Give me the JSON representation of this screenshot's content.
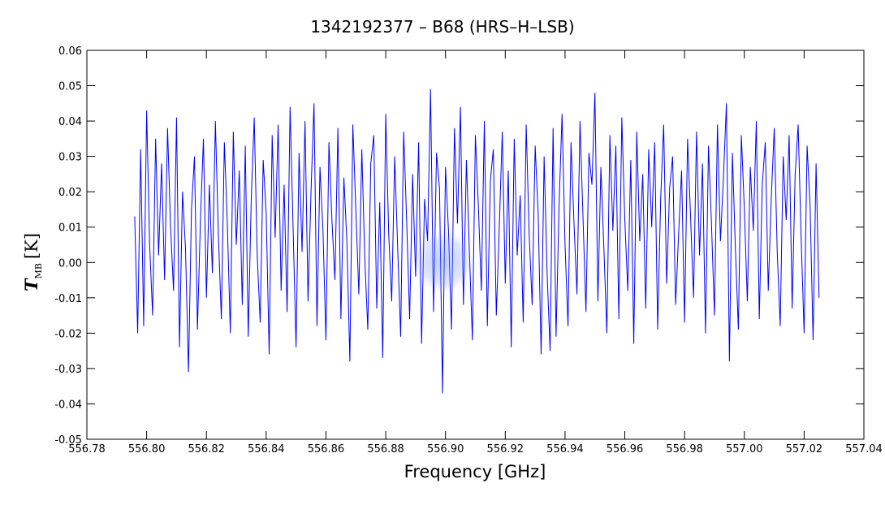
{
  "chart_data": {
    "type": "line",
    "title": "1342192377 – B68 (HRS–H–LSB)",
    "xlabel": "Frequency [GHz]",
    "ylabel": {
      "symbol": "T",
      "subscript": "MB",
      "unit": "[K]"
    },
    "xlim": [
      556.78,
      557.04
    ],
    "ylim": [
      -0.05,
      0.06
    ],
    "xticks": [
      556.78,
      {
        "value": 556.8,
        "label": "556.80"
      },
      556.82,
      556.84,
      556.86,
      556.88,
      {
        "value": 556.9,
        "label": "556.90"
      },
      556.92,
      556.94,
      556.96,
      556.98,
      {
        "value": 557.0,
        "label": "557.00"
      },
      557.02,
      557.04
    ],
    "yticks": [
      -0.05,
      -0.04,
      -0.03,
      -0.02,
      -0.01,
      {
        "value": 0,
        "label": "0.00"
      },
      0.01,
      0.02,
      0.03,
      0.04,
      0.05,
      0.06
    ],
    "grid": false,
    "series": [
      {
        "color": "#0000ff",
        "x": [
          556.796,
          556.797,
          556.798,
          556.799,
          556.8,
          556.801,
          556.802,
          556.803,
          556.804,
          556.805,
          556.806,
          556.807,
          556.808,
          556.809,
          556.81,
          556.811,
          556.812,
          556.813,
          556.814,
          556.815,
          556.816,
          556.817,
          556.818,
          556.819,
          556.82,
          556.821,
          556.822,
          556.823,
          556.824,
          556.825,
          556.826,
          556.827,
          556.828,
          556.829,
          556.83,
          556.831,
          556.832,
          556.833,
          556.834,
          556.835,
          556.836,
          556.837,
          556.838,
          556.839,
          556.84,
          556.841,
          556.842,
          556.843,
          556.844,
          556.845,
          556.846,
          556.847,
          556.848,
          556.849,
          556.85,
          556.851,
          556.852,
          556.853,
          556.854,
          556.855,
          556.856,
          556.857,
          556.858,
          556.859,
          556.86,
          556.861,
          556.862,
          556.863,
          556.864,
          556.865,
          556.866,
          556.867,
          556.868,
          556.869,
          556.87,
          556.871,
          556.872,
          556.873,
          556.874,
          556.875,
          556.876,
          556.877,
          556.878,
          556.879,
          556.88,
          556.881,
          556.882,
          556.883,
          556.884,
          556.885,
          556.886,
          556.887,
          556.888,
          556.889,
          556.89,
          556.891,
          556.892,
          556.893,
          556.894,
          556.895,
          556.896,
          556.897,
          556.898,
          556.899,
          556.9,
          556.901,
          556.902,
          556.903,
          556.904,
          556.905,
          556.906,
          556.907,
          556.908,
          556.909,
          556.91,
          556.911,
          556.912,
          556.913,
          556.914,
          556.915,
          556.916,
          556.917,
          556.918,
          556.919,
          556.92,
          556.921,
          556.922,
          556.923,
          556.924,
          556.925,
          556.926,
          556.927,
          556.928,
          556.929,
          556.93,
          556.931,
          556.932,
          556.933,
          556.934,
          556.935,
          556.936,
          556.937,
          556.938,
          556.939,
          556.94,
          556.941,
          556.942,
          556.943,
          556.944,
          556.945,
          556.946,
          556.947,
          556.948,
          556.949,
          556.95,
          556.951,
          556.952,
          556.953,
          556.954,
          556.955,
          556.956,
          556.957,
          556.958,
          556.959,
          556.96,
          556.961,
          556.962,
          556.963,
          556.964,
          556.965,
          556.966,
          556.967,
          556.968,
          556.969,
          556.97,
          556.971,
          556.972,
          556.973,
          556.974,
          556.975,
          556.976,
          556.977,
          556.978,
          556.979,
          556.98,
          556.981,
          556.982,
          556.983,
          556.984,
          556.985,
          556.986,
          556.987,
          556.988,
          556.989,
          556.99,
          556.991,
          556.992,
          556.993,
          556.994,
          556.995,
          556.996,
          556.997,
          556.998,
          556.999,
          557.0,
          557.001,
          557.002,
          557.003,
          557.004,
          557.005,
          557.006,
          557.007,
          557.008,
          557.009,
          557.01,
          557.011,
          557.012,
          557.013,
          557.014,
          557.015,
          557.016,
          557.017,
          557.018,
          557.019,
          557.02,
          557.021,
          557.022,
          557.023,
          557.024,
          557.025
        ],
        "values": [
          0.013,
          -0.02,
          0.032,
          -0.018,
          0.043,
          0.005,
          -0.015,
          0.035,
          0.002,
          0.028,
          -0.005,
          0.038,
          0.01,
          -0.008,
          0.041,
          -0.024,
          0.02,
          0.004,
          -0.031,
          0.015,
          0.03,
          -0.019,
          0.012,
          0.035,
          -0.01,
          0.022,
          -0.003,
          0.04,
          0.008,
          -0.016,
          0.034,
          0.011,
          -0.02,
          0.037,
          0.005,
          0.026,
          -0.012,
          0.033,
          -0.021,
          0.018,
          0.041,
          0.002,
          -0.017,
          0.029,
          0.014,
          -0.026,
          0.036,
          0.007,
          0.039,
          -0.008,
          0.022,
          -0.014,
          0.044,
          0.01,
          -0.024,
          0.031,
          0.003,
          0.04,
          -0.011,
          0.02,
          0.045,
          -0.018,
          0.027,
          0.009,
          -0.022,
          0.034,
          0.012,
          -0.005,
          0.038,
          -0.016,
          0.024,
          0.006,
          -0.028,
          0.039,
          0.015,
          -0.009,
          0.032,
          0.001,
          -0.019,
          0.028,
          0.036,
          -0.013,
          0.017,
          -0.027,
          0.042,
          0.008,
          -0.011,
          0.03,
          0.004,
          -0.021,
          0.037,
          0.012,
          -0.016,
          0.025,
          -0.004,
          0.034,
          -0.023,
          0.018,
          0.006,
          0.049,
          -0.014,
          0.031,
          0.021,
          -0.037,
          0.027,
          0.009,
          -0.019,
          0.038,
          0.011,
          0.044,
          -0.012,
          0.029,
          0.003,
          -0.022,
          0.036,
          0.016,
          -0.008,
          0.04,
          -0.018,
          0.023,
          0.032,
          -0.015,
          0.01,
          0.037,
          -0.006,
          0.026,
          -0.024,
          0.035,
          0.002,
          0.019,
          -0.017,
          0.039,
          0.008,
          -0.012,
          0.033,
          0.014,
          -0.026,
          0.03,
          -0.003,
          -0.025,
          0.038,
          -0.021,
          0.016,
          0.042,
          0.005,
          -0.018,
          0.034,
          0.011,
          -0.009,
          0.04,
          0.013,
          -0.014,
          0.031,
          0.022,
          0.048,
          -0.011,
          0.027,
          0.004,
          -0.02,
          0.036,
          0.009,
          0.033,
          -0.016,
          0.041,
          0.012,
          -0.008,
          0.029,
          -0.023,
          0.037,
          0.006,
          0.025,
          -0.013,
          0.032,
          0.01,
          0.034,
          -0.019,
          0.018,
          0.039,
          -0.006,
          0.021,
          0.03,
          -0.012,
          0.008,
          0.026,
          -0.017,
          0.035,
          0.013,
          -0.01,
          0.037,
          0.002,
          0.028,
          -0.02,
          0.033,
          0.011,
          -0.015,
          0.039,
          0.006,
          0.024,
          0.045,
          -0.028,
          0.031,
          0.004,
          -0.019,
          0.036,
          0.015,
          -0.011,
          0.027,
          0.009,
          0.04,
          -0.016,
          0.022,
          0.034,
          -0.008,
          0.018,
          0.038,
          0.003,
          -0.018,
          0.03,
          0.012,
          0.036,
          -0.013,
          0.025,
          0.039,
          0.007,
          -0.02,
          0.033,
          0.016,
          -0.022,
          0.028,
          -0.01
        ]
      }
    ]
  }
}
